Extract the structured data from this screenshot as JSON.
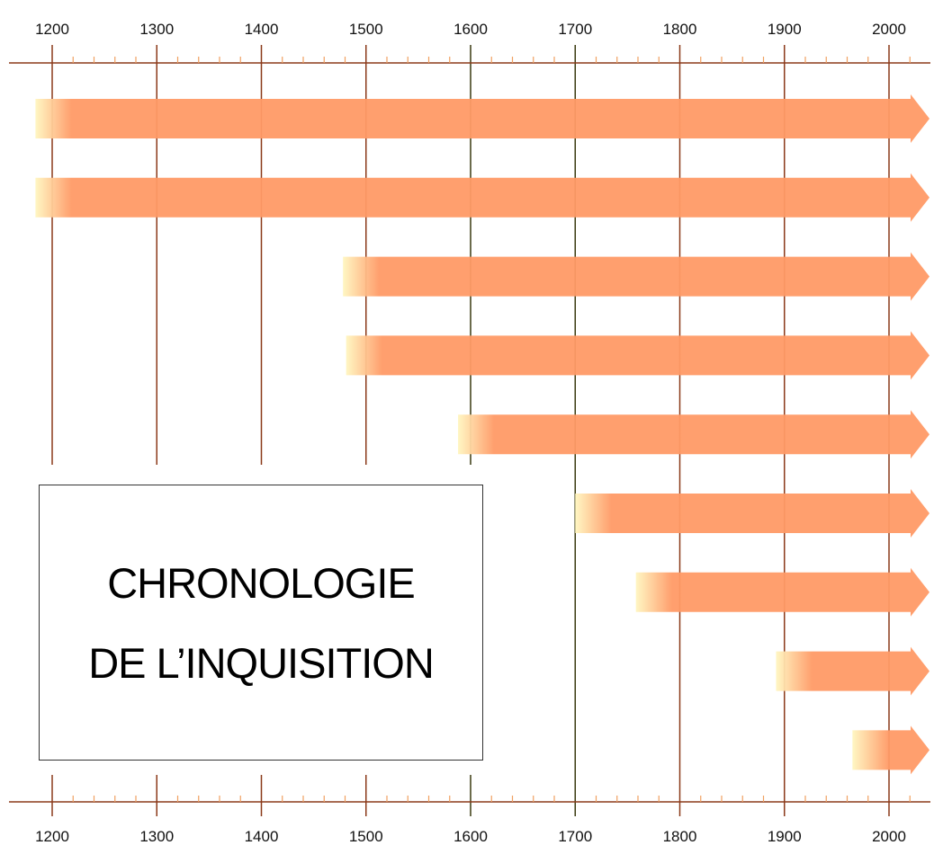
{
  "axis": {
    "years": [
      1200,
      1300,
      1400,
      1500,
      1600,
      1700,
      1800,
      1900,
      2000
    ],
    "minor_ticks_per_century": 4,
    "line_color": "#8b3a1a",
    "alt_line_color": "#3a3a10"
  },
  "periods": [
    {
      "start": 1184,
      "end": "ongoing"
    },
    {
      "start": 1184,
      "end": "ongoing"
    },
    {
      "start": 1478,
      "end": "ongoing"
    },
    {
      "start": 1481,
      "end": "ongoing"
    },
    {
      "start": 1588,
      "end": "ongoing"
    },
    {
      "start": 1700,
      "end": "ongoing"
    },
    {
      "start": 1758,
      "end": "ongoing"
    },
    {
      "start": 1892,
      "end": "ongoing"
    },
    {
      "start": 1965,
      "end": "ongoing"
    }
  ],
  "colors": {
    "arrow_fill": "#ff9a66",
    "arrow_fade": "#fff6c0"
  },
  "title": {
    "line1": "CHRONOLOGIE",
    "line2": "DE L’INQUISITION"
  }
}
